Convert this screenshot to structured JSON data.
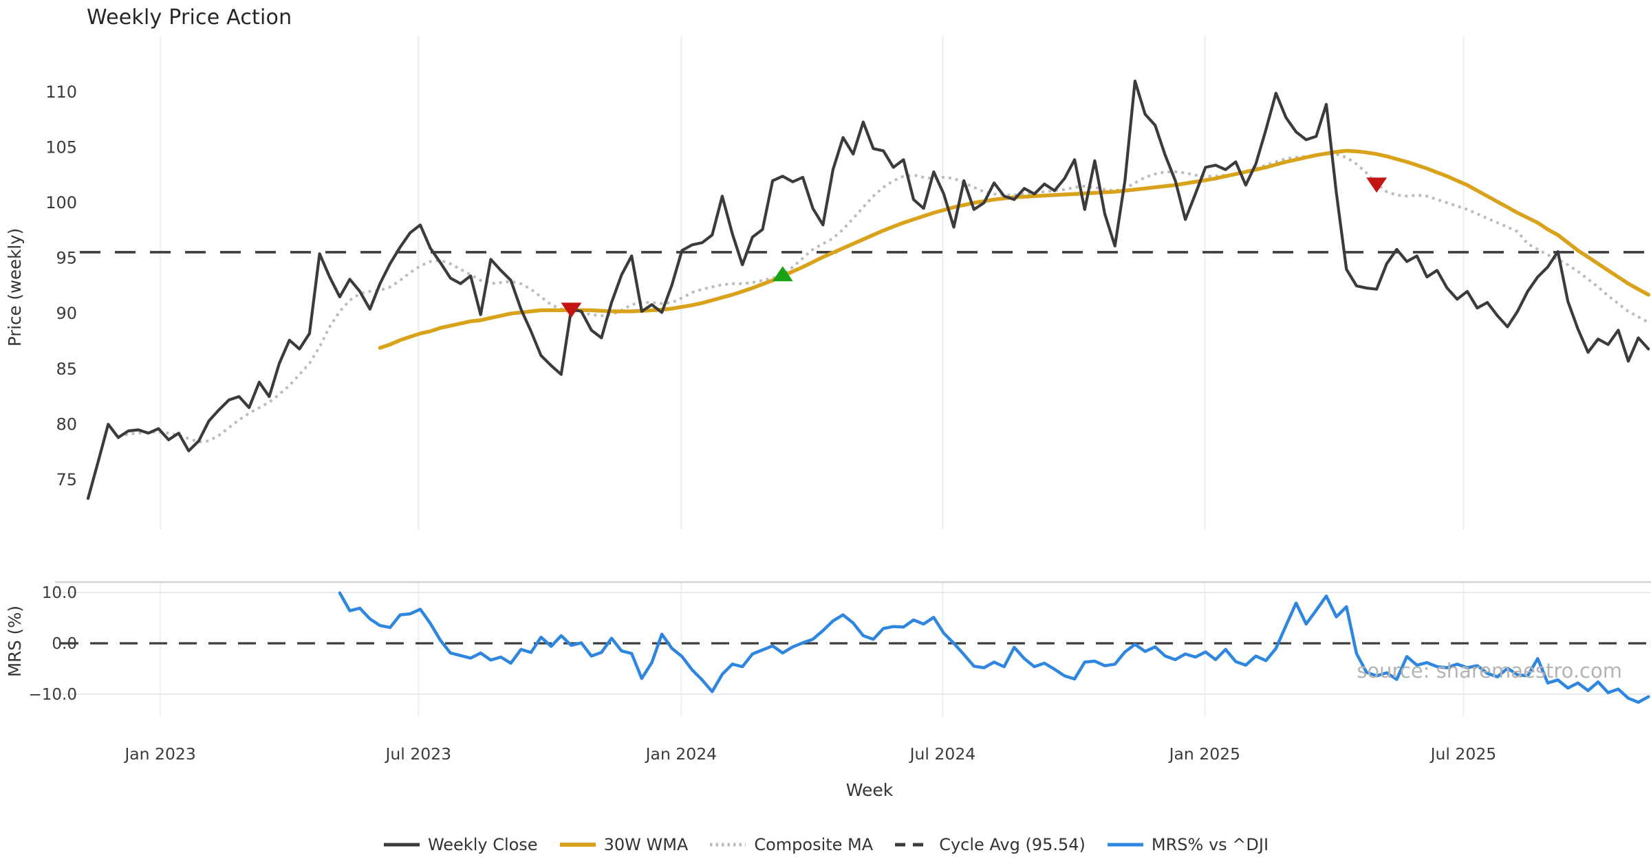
{
  "title": "Weekly Price Action",
  "watermark": "source: sharemaestro.com",
  "legend": [
    {
      "id": "weekly-close",
      "label": "Weekly Close",
      "swatch": "solid",
      "color": "#3b3b3b"
    },
    {
      "id": "wma-30w",
      "label": "30W WMA",
      "swatch": "solid",
      "color": "#d9a21b"
    },
    {
      "id": "composite-ma",
      "label": "Composite MA",
      "swatch": "dotted",
      "color": "#bcbcbc"
    },
    {
      "id": "cycle-avg",
      "label": "Cycle Avg (95.54)",
      "swatch": "dashed",
      "color": "#3b3b3b"
    },
    {
      "id": "mrs",
      "label": "MRS% vs ^DJI",
      "swatch": "solid",
      "color": "#2e86de"
    }
  ],
  "colors": {
    "close": "#3b3b3b",
    "wma": "#d9a21b",
    "composite": "#bcbcbc",
    "cycle_dash": "#3d3d3d",
    "mrs": "#2e86de",
    "marker_up": "#16a316",
    "marker_down": "#c41414",
    "grid": "#eef0f2",
    "mrs_grid": "#e9e9e9",
    "mrs_spine": "#d4d4d4",
    "tick_text": "#3a3a3a",
    "watermark": "#b4b4b4"
  },
  "chart_data": [
    {
      "type": "line",
      "panel": "price",
      "title": "Weekly Price Action",
      "ylabel": "Price (weekly)",
      "ylim": [
        69,
        115
      ],
      "yticks": [
        75,
        80,
        85,
        90,
        95,
        100,
        105,
        110
      ],
      "grid": "vertical-only",
      "cycle_avg": 95.54,
      "x_axis": {
        "label": "Week",
        "tick_labels": [
          "Jan 2023",
          "Jul 2023",
          "Jan 2024",
          "Jul 2024",
          "Jan 2025",
          "Jul 2025"
        ],
        "tick_weeks": [
          7.18,
          32.82,
          58.93,
          84.9,
          110.93,
          136.63
        ]
      },
      "series": [
        {
          "name": "Weekly Close",
          "style": "solid",
          "width": 4.2,
          "color": "#3b3b3b",
          "start_week": 0,
          "values": [
            73.3,
            76.6,
            80.0,
            78.8,
            79.4,
            79.5,
            79.2,
            79.6,
            78.6,
            79.2,
            77.6,
            78.5,
            80.3,
            81.3,
            82.2,
            82.5,
            81.5,
            83.8,
            82.5,
            85.5,
            87.6,
            86.8,
            88.2,
            95.4,
            93.3,
            91.5,
            93.1,
            92.0,
            90.4,
            92.7,
            94.5,
            96.0,
            97.3,
            98.0,
            95.9,
            94.6,
            93.2,
            92.7,
            93.4,
            89.9,
            94.9,
            93.9,
            93.0,
            90.4,
            88.4,
            86.2,
            85.3,
            84.5,
            90.4,
            90.2,
            88.5,
            87.8,
            91.0,
            93.5,
            95.2,
            90.2,
            90.8,
            90.1,
            92.6,
            95.7,
            96.2,
            96.4,
            97.1,
            100.6,
            97.2,
            94.4,
            96.9,
            97.6,
            102.0,
            102.4,
            101.9,
            102.3,
            99.5,
            98.0,
            103.0,
            105.9,
            104.4,
            107.3,
            104.9,
            104.7,
            103.2,
            103.9,
            100.3,
            99.5,
            102.8,
            100.8,
            97.8,
            102.0,
            99.4,
            100.0,
            101.8,
            100.6,
            100.3,
            101.3,
            100.8,
            101.7,
            101.1,
            102.2,
            103.9,
            99.4,
            103.8,
            99.0,
            96.1,
            102.0,
            111.0,
            108.0,
            107.0,
            104.3,
            102.0,
            98.5,
            100.8,
            103.2,
            103.4,
            103.0,
            103.7,
            101.6,
            103.5,
            106.6,
            109.9,
            107.7,
            106.4,
            105.7,
            106.0,
            108.9,
            100.9,
            94.0,
            92.5,
            92.3,
            92.2,
            94.5,
            95.8,
            94.7,
            95.2,
            93.3,
            93.9,
            92.3,
            91.3,
            92.0,
            90.5,
            91.0,
            89.8,
            88.8,
            90.2,
            92.0,
            93.3,
            94.2,
            95.6,
            91.1,
            88.6,
            86.5,
            87.7,
            87.2,
            88.5,
            85.7,
            87.8,
            86.8
          ]
        },
        {
          "name": "30W WMA",
          "style": "solid",
          "width": 5.5,
          "color": "#d9a21b",
          "start_week": 29,
          "values": [
            86.9,
            87.2,
            87.6,
            87.9,
            88.2,
            88.4,
            88.7,
            88.9,
            89.1,
            89.3,
            89.4,
            89.6,
            89.8,
            90.0,
            90.1,
            90.2,
            90.3,
            90.3,
            90.3,
            90.3,
            90.3,
            90.3,
            90.25,
            90.2,
            90.2,
            90.2,
            90.25,
            90.3,
            90.35,
            90.45,
            90.6,
            90.75,
            90.95,
            91.2,
            91.45,
            91.7,
            92.0,
            92.3,
            92.65,
            93.0,
            93.4,
            93.8,
            94.2,
            94.65,
            95.1,
            95.5,
            95.9,
            96.3,
            96.7,
            97.1,
            97.5,
            97.85,
            98.2,
            98.5,
            98.8,
            99.1,
            99.35,
            99.6,
            99.8,
            100.0,
            100.15,
            100.3,
            100.4,
            100.5,
            100.55,
            100.6,
            100.65,
            100.7,
            100.75,
            100.8,
            100.85,
            100.9,
            100.95,
            101.0,
            101.1,
            101.2,
            101.3,
            101.4,
            101.5,
            101.6,
            101.75,
            101.9,
            102.05,
            102.2,
            102.4,
            102.6,
            102.8,
            103.0,
            103.2,
            103.45,
            103.7,
            103.9,
            104.1,
            104.3,
            104.45,
            104.6,
            104.7,
            104.65,
            104.55,
            104.4,
            104.2,
            103.95,
            103.7,
            103.4,
            103.1,
            102.75,
            102.4,
            102.0,
            101.6,
            101.1,
            100.6,
            100.1,
            99.6,
            99.1,
            98.65,
            98.2,
            97.6,
            97.1,
            96.4,
            95.7,
            95.1,
            94.5,
            93.9,
            93.3,
            92.7,
            92.2,
            91.7
          ]
        },
        {
          "name": "Composite MA",
          "style": "dotted",
          "width": 4,
          "color": "#bcbcbc",
          "start_week": 3,
          "values": [
            78.9,
            79.1,
            79.2,
            79.3,
            79.3,
            79.2,
            79.0,
            78.7,
            78.4,
            78.5,
            79.0,
            79.7,
            80.4,
            81.0,
            81.5,
            82.0,
            82.7,
            83.5,
            84.5,
            85.5,
            87.0,
            88.8,
            90.2,
            91.2,
            91.8,
            92.0,
            92.1,
            92.4,
            93.0,
            93.7,
            94.3,
            94.7,
            94.8,
            94.5,
            94.0,
            93.5,
            93.0,
            92.7,
            92.8,
            92.9,
            92.7,
            92.2,
            91.5,
            90.8,
            90.4,
            90.3,
            90.1,
            89.9,
            89.8,
            89.9,
            90.3,
            90.8,
            91.0,
            91.0,
            90.9,
            91.0,
            91.4,
            91.9,
            92.2,
            92.4,
            92.6,
            92.7,
            92.7,
            92.8,
            93.0,
            93.2,
            93.5,
            94.2,
            95.0,
            95.8,
            96.3,
            96.8,
            97.6,
            98.6,
            99.6,
            100.6,
            101.4,
            102.0,
            102.4,
            102.5,
            102.3,
            102.2,
            102.3,
            102.2,
            101.8,
            101.4,
            101.0,
            100.8,
            100.7,
            100.7,
            100.8,
            100.9,
            101.0,
            101.1,
            101.2,
            101.4,
            101.5,
            101.4,
            101.2,
            101.1,
            101.3,
            101.8,
            102.3,
            102.6,
            102.8,
            102.8,
            102.7,
            102.5,
            102.4,
            102.4,
            102.5,
            102.6,
            102.8,
            103.1,
            103.4,
            103.7,
            104.0,
            104.1,
            104.2,
            104.3,
            104.4,
            104.4,
            104.1,
            103.5,
            102.7,
            101.7,
            101.0,
            100.7,
            100.6,
            100.7,
            100.6,
            100.3,
            100.0,
            99.7,
            99.4,
            99.0,
            98.6,
            98.2,
            97.8,
            97.4,
            96.3,
            95.8,
            95.3,
            94.9,
            94.4,
            93.8,
            93.1,
            92.4,
            91.6,
            90.9,
            90.2,
            89.7,
            89.2
          ]
        }
      ],
      "markers": [
        {
          "week": 48,
          "value": 90.3,
          "dir": "down",
          "color": "#c41414"
        },
        {
          "week": 69,
          "value": 93.6,
          "dir": "up",
          "color": "#16a316"
        },
        {
          "week": 128,
          "value": 101.6,
          "dir": "down",
          "color": "#c41414"
        }
      ]
    },
    {
      "type": "line",
      "panel": "mrs",
      "ylabel": "MRS (%)",
      "ylim": [
        -13.5,
        12
      ],
      "yticks": [
        10.0,
        0.0,
        -10.0
      ],
      "ytick_labels": [
        "10.0",
        "0.0",
        "−10.0"
      ],
      "zero_dashed": true,
      "series": [
        {
          "name": "MRS% vs ^DJI",
          "style": "solid",
          "width": 4.5,
          "color": "#2e86de",
          "start_week": 25,
          "values": [
            9.9,
            6.4,
            6.9,
            4.8,
            3.5,
            3.1,
            5.6,
            5.8,
            6.7,
            3.9,
            0.6,
            -1.9,
            -2.4,
            -2.9,
            -1.9,
            -3.3,
            -2.7,
            -3.9,
            -1.2,
            -1.8,
            1.2,
            -0.6,
            1.5,
            -0.4,
            0.1,
            -2.5,
            -1.8,
            1.0,
            -1.5,
            -2.0,
            -6.9,
            -3.8,
            1.8,
            -1.0,
            -2.6,
            -5.2,
            -7.2,
            -9.5,
            -6.1,
            -4.1,
            -4.6,
            -2.1,
            -1.3,
            -0.5,
            -1.9,
            -0.7,
            0.1,
            0.8,
            2.5,
            4.4,
            5.6,
            4.0,
            1.5,
            0.8,
            2.9,
            3.3,
            3.2,
            4.6,
            3.8,
            5.1,
            2.0,
            0.0,
            -2.2,
            -4.5,
            -4.8,
            -3.7,
            -4.6,
            -0.8,
            -3.0,
            -4.6,
            -3.9,
            -5.1,
            -6.4,
            -7.0,
            -3.7,
            -3.5,
            -4.4,
            -4.1,
            -1.7,
            -0.2,
            -1.6,
            -0.7,
            -2.5,
            -3.2,
            -2.1,
            -2.7,
            -1.7,
            -3.2,
            -1.2,
            -3.6,
            -4.3,
            -2.5,
            -3.4,
            -1.0,
            3.5,
            7.9,
            3.8,
            6.5,
            9.3,
            5.2,
            7.2,
            -2.0,
            -5.7,
            -6.4,
            -5.8,
            -7.1,
            -2.6,
            -4.3,
            -3.8,
            -4.6,
            -4.8,
            -4.1,
            -4.8,
            -4.4,
            -5.9,
            -6.6,
            -4.9,
            -6.2,
            -6.4,
            -3.0,
            -7.8,
            -7.2,
            -8.8,
            -7.8,
            -9.3,
            -7.6,
            -9.7,
            -9.0,
            -10.8,
            -11.6,
            -10.5
          ]
        }
      ]
    }
  ]
}
